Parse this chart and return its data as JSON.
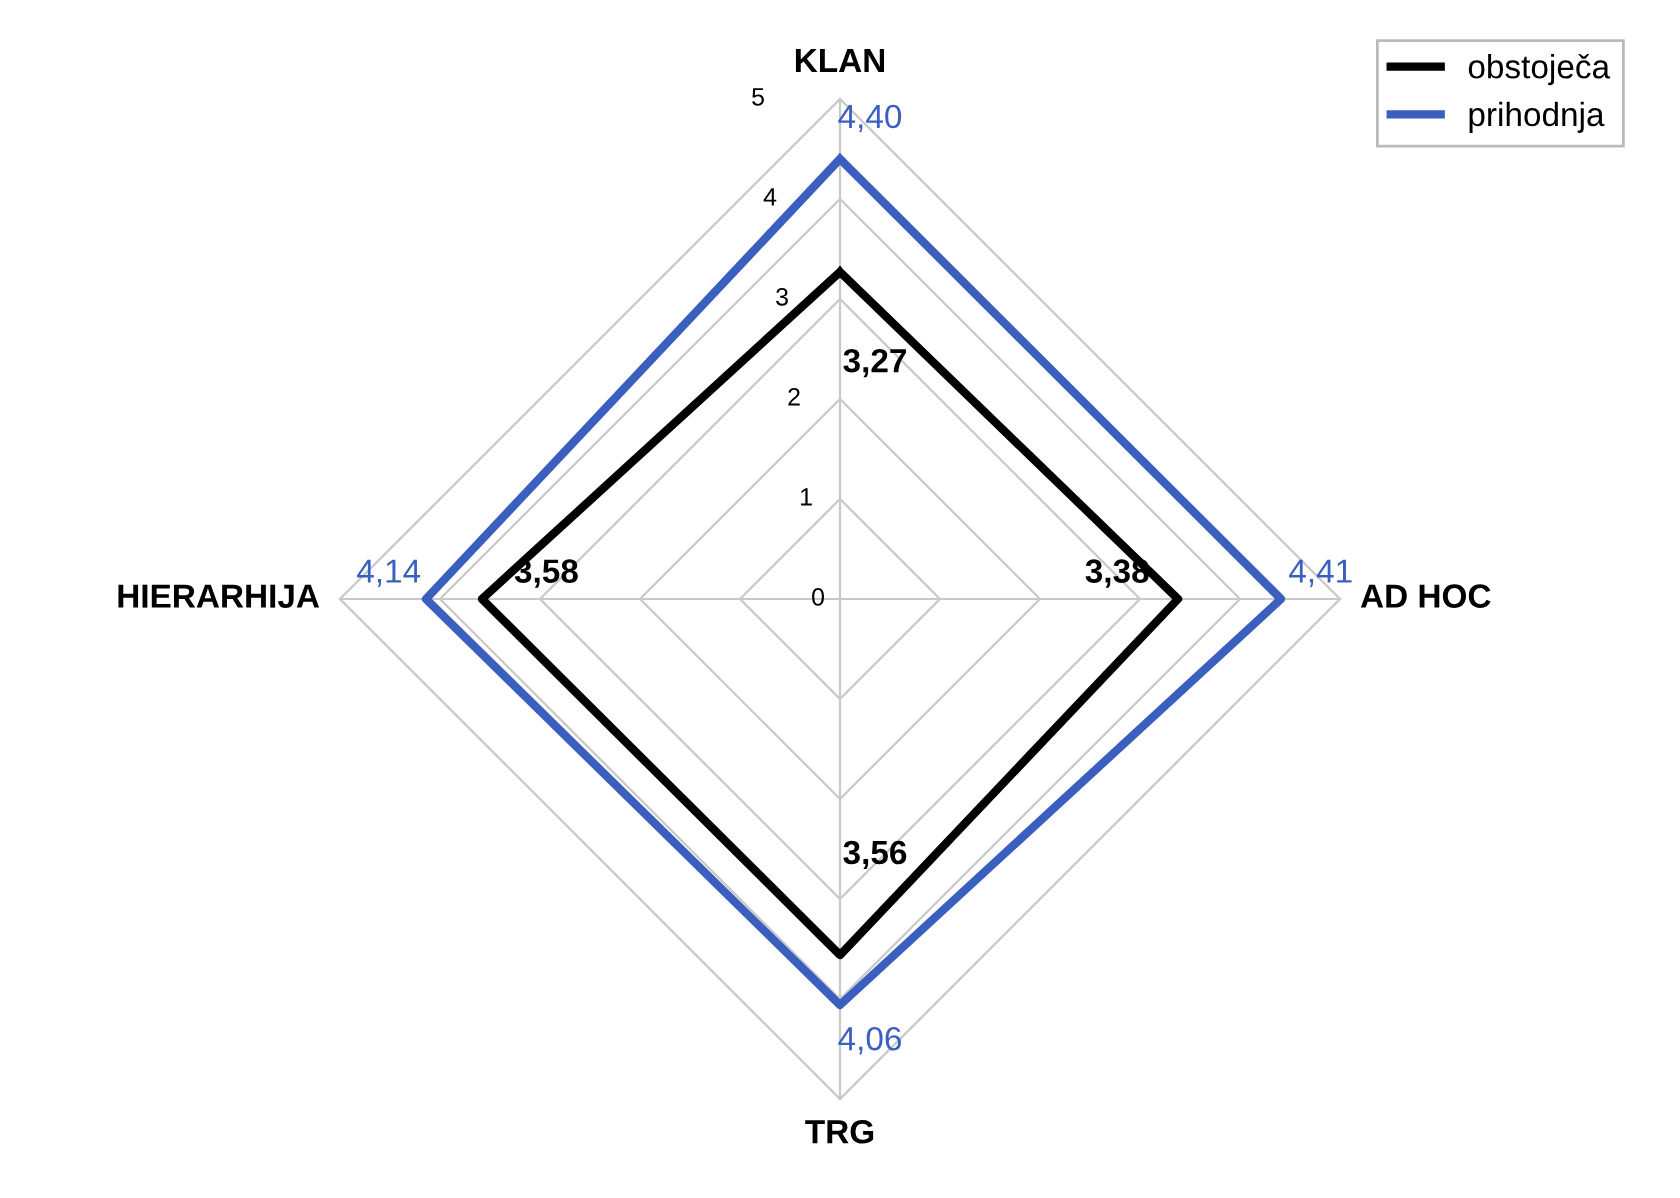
{
  "chart_data": {
    "type": "radar",
    "categories": [
      "KLAN",
      "AD HOC",
      "TRG",
      "HIERARHIJA"
    ],
    "ylim": [
      0,
      5
    ],
    "yticks": [
      0,
      1,
      2,
      3,
      4,
      5
    ],
    "grid": true,
    "legend": "top right",
    "series": [
      {
        "name": "obstoječa",
        "color": "#000000",
        "values": [
          3.27,
          3.38,
          3.56,
          3.58
        ],
        "value_labels": [
          "3,27",
          "3,38",
          "3,56",
          "3,58"
        ]
      },
      {
        "name": "prihodnja",
        "color": "#3a5fbf",
        "values": [
          4.4,
          4.41,
          4.06,
          4.14
        ],
        "value_labels": [
          "4,40",
          "4,41",
          "4,06",
          "4,14"
        ]
      }
    ]
  }
}
